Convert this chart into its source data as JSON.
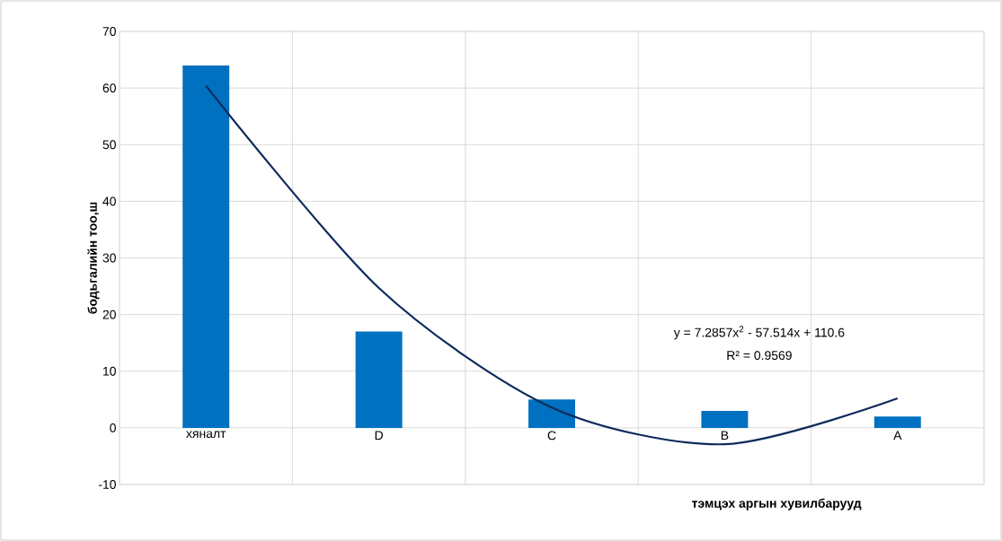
{
  "chart_data": {
    "type": "bar",
    "xlabel": "тэмцэх аргын хувилбарууд",
    "ylabel": "бодьгалийн тоо,ш",
    "categories": [
      "хяналт",
      "D",
      "C",
      "B",
      "A"
    ],
    "series": [
      {
        "color": "#0070c0",
        "values": [
          64,
          17,
          5,
          3,
          2
        ]
      },
      {
        "type": "line",
        "color": "#0e2a5c",
        "values": [
          60.4,
          24.7,
          3.6,
          -2.9,
          5.2
        ]
      }
    ],
    "ylim": [
      -10,
      70
    ],
    "yticks": [
      -10,
      0,
      10,
      20,
      30,
      40,
      50,
      60,
      70
    ],
    "grid": true,
    "annotations": [
      "y = 7.2857x$^{2}$ - 57.514x + 110.6",
      "R² = 0.9569"
    ]
  }
}
